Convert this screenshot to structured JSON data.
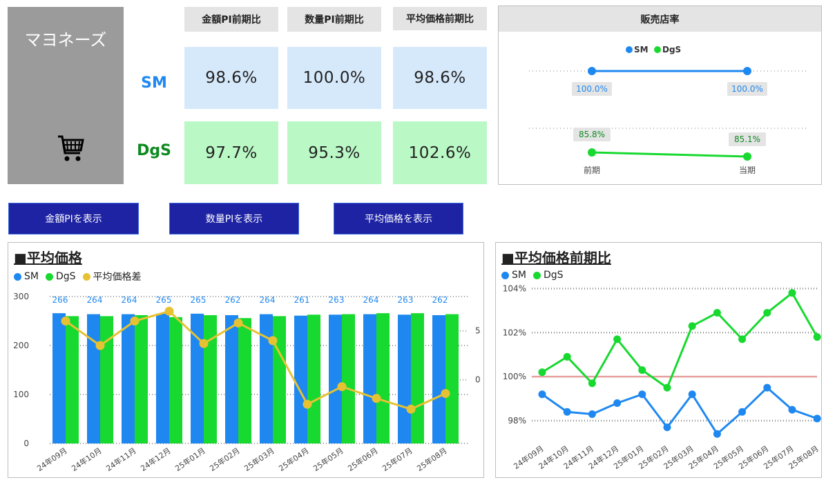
{
  "product": {
    "name": "マヨネーズ",
    "icon": "shopping-cart-icon"
  },
  "kpi": {
    "headers": [
      "金額PI前期比",
      "数量PI前期比",
      "平均価格前期比"
    ],
    "rows": [
      {
        "label": "SM",
        "values": [
          "98.6%",
          "100.0%",
          "98.6%"
        ]
      },
      {
        "label": "DgS",
        "values": [
          "97.7%",
          "95.3%",
          "102.6%"
        ]
      }
    ]
  },
  "store_rate": {
    "title": "販売店率",
    "legend": [
      "SM",
      "DgS"
    ],
    "periods": [
      "前期",
      "当期"
    ],
    "sm": [
      "100.0%",
      "100.0%"
    ],
    "dgs": [
      "85.8%",
      "85.1%"
    ]
  },
  "buttons": [
    "金額PIを表示",
    "数量PIを表示",
    "平均価格を表示"
  ],
  "colors": {
    "sm": "#1e88f0",
    "dgs": "#17d92f",
    "diff": "#e6c233",
    "button": "#1e23a3",
    "baseline": "#e8a0a0"
  },
  "chart_data": [
    {
      "type": "bar",
      "title": "■平均価格",
      "categories": [
        "24年09月",
        "24年10月",
        "24年11月",
        "24年12月",
        "25年01月",
        "25年02月",
        "25年03月",
        "25年04月",
        "25年05月",
        "25年06月",
        "25年07月",
        "25年08月"
      ],
      "series": [
        {
          "name": "SM",
          "values": [
            266,
            264,
            264,
            265,
            265,
            262,
            264,
            261,
            263,
            264,
            263,
            262
          ]
        },
        {
          "name": "DgS",
          "values": [
            260,
            260,
            262,
            258,
            262,
            256,
            260,
            263,
            264,
            266,
            266,
            264
          ]
        },
        {
          "name": "平均価格差",
          "type": "line",
          "axis": "right",
          "values": [
            6,
            3.5,
            6,
            7,
            3.7,
            5.8,
            4,
            -2.5,
            -0.7,
            -1.9,
            -3,
            -1.4
          ]
        }
      ],
      "data_labels": [
        "266",
        "264",
        "264",
        "265",
        "265",
        "262",
        "264",
        "261",
        "263",
        "264",
        "263",
        "262"
      ],
      "y_ticks": [
        "0",
        "100",
        "200",
        "300"
      ],
      "ylim": [
        0,
        300
      ],
      "y2_ticks": [
        "0",
        "5"
      ],
      "y2lim": [
        -6.5,
        8.5
      ]
    },
    {
      "type": "line",
      "title": "■平均価格前期比",
      "categories": [
        "24年09月",
        "24年10月",
        "24年11月",
        "24年12月",
        "25年01月",
        "25年02月",
        "25年03月",
        "25年04月",
        "25年05月",
        "25年06月",
        "25年07月",
        "25年08月"
      ],
      "series": [
        {
          "name": "SM",
          "values": [
            99.2,
            98.4,
            98.3,
            98.8,
            99.2,
            97.7,
            99.2,
            97.4,
            98.4,
            99.5,
            98.5,
            98.1
          ]
        },
        {
          "name": "DgS",
          "values": [
            100.2,
            100.9,
            99.7,
            101.7,
            100.3,
            99.5,
            102.3,
            102.9,
            101.7,
            102.9,
            103.8,
            101.8
          ]
        }
      ],
      "y_ticks": [
        "98%",
        "100%",
        "102%",
        "104%"
      ],
      "ylim": [
        97.0,
        104.2
      ],
      "reference_line": 100
    }
  ]
}
